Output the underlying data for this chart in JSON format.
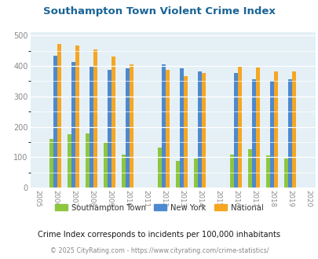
{
  "title": "Southampton Town Violent Crime Index",
  "subtitle": "Crime Index corresponds to incidents per 100,000 inhabitants",
  "copyright": "© 2025 CityRating.com - https://www.cityrating.com/crime-statistics/",
  "years": [
    2006,
    2007,
    2008,
    2009,
    2010,
    2012,
    2013,
    2014,
    2016,
    2017,
    2018,
    2019
  ],
  "southampton": [
    160,
    175,
    178,
    148,
    108,
    132,
    88,
    96,
    108,
    127,
    107,
    95
  ],
  "new_york": [
    433,
    413,
    400,
    386,
    393,
    405,
    391,
    383,
    376,
    356,
    351,
    357
  ],
  "national": [
    472,
    467,
    455,
    432,
    404,
    387,
    366,
    376,
    397,
    394,
    381,
    381
  ],
  "color_southampton": "#8dc63f",
  "color_new_york": "#4d89cf",
  "color_national": "#f5a623",
  "background_color": "#e4f0f6",
  "title_color": "#1a6496",
  "subtitle_color": "#1a1a1a",
  "copyright_color": "#888888",
  "tick_label_color": "#888888",
  "ylabel_max": 500,
  "ylabel_min": 0,
  "ylabel_step": 100,
  "bar_width": 0.22,
  "xlim_left": 2004.6,
  "xlim_right": 2020.4,
  "legend_labels": [
    "Southampton Town",
    "New York",
    "National"
  ]
}
